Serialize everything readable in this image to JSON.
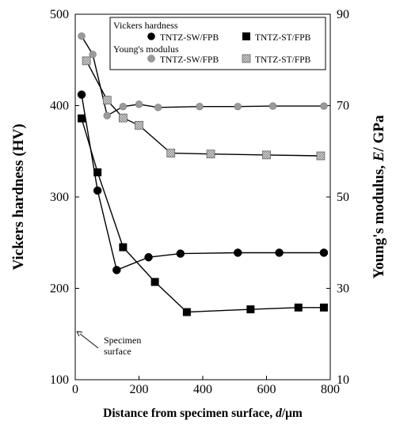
{
  "chart_data": {
    "type": "line",
    "xlabel": "Distance from specimen surface, d/μm",
    "ylabel_left": "Vickers hardness (HV)",
    "ylabel_right": "Young's modulus, E/ GPa",
    "xlim": [
      0,
      800
    ],
    "x_ticks": [
      0,
      200,
      400,
      600,
      800
    ],
    "ylim_left": [
      100,
      500
    ],
    "y_ticks_left": [
      100,
      200,
      300,
      400,
      500
    ],
    "ylim_right": [
      10,
      90
    ],
    "y_ticks_right": [
      10,
      30,
      50,
      70,
      90
    ],
    "legend": {
      "group1_title": "Vickers hardness",
      "group2_title": "Young's modulus",
      "placement": "top"
    },
    "annotation": {
      "line1": "Specimen",
      "line2": "surface"
    },
    "series": [
      {
        "name": "TNTZ-SW/FPB",
        "group": "Vickers hardness",
        "axis": "left",
        "marker": "circle",
        "color": "#000000",
        "x": [
          20,
          70,
          130,
          230,
          330,
          510,
          640,
          780
        ],
        "y": [
          412,
          307,
          220,
          234,
          238,
          239,
          239,
          239
        ]
      },
      {
        "name": "TNTZ-ST/FPB",
        "group": "Vickers hardness",
        "axis": "left",
        "marker": "square",
        "color": "#000000",
        "x": [
          20,
          70,
          150,
          250,
          350,
          550,
          700,
          780
        ],
        "y": [
          386,
          327,
          245,
          207,
          174,
          177,
          179,
          179
        ]
      },
      {
        "name": "TNTZ-SW/FPB",
        "group": "Young's modulus",
        "axis": "right",
        "marker": "circle",
        "color": "#9a9a9a",
        "x": [
          20,
          55,
          100,
          150,
          200,
          260,
          390,
          510,
          620,
          780
        ],
        "y": [
          85.2,
          81.2,
          67.8,
          69.8,
          70.3,
          69.6,
          69.8,
          69.8,
          69.9,
          69.9
        ]
      },
      {
        "name": "TNTZ-ST/FPB",
        "group": "Young's modulus",
        "axis": "right",
        "marker": "square-hatched",
        "color": "#b0b0b0",
        "x": [
          35,
          100,
          150,
          200,
          300,
          425,
          600,
          770
        ],
        "y": [
          79.8,
          71.2,
          67.3,
          65.7,
          59.6,
          59.4,
          59.2,
          59.0
        ]
      }
    ]
  }
}
